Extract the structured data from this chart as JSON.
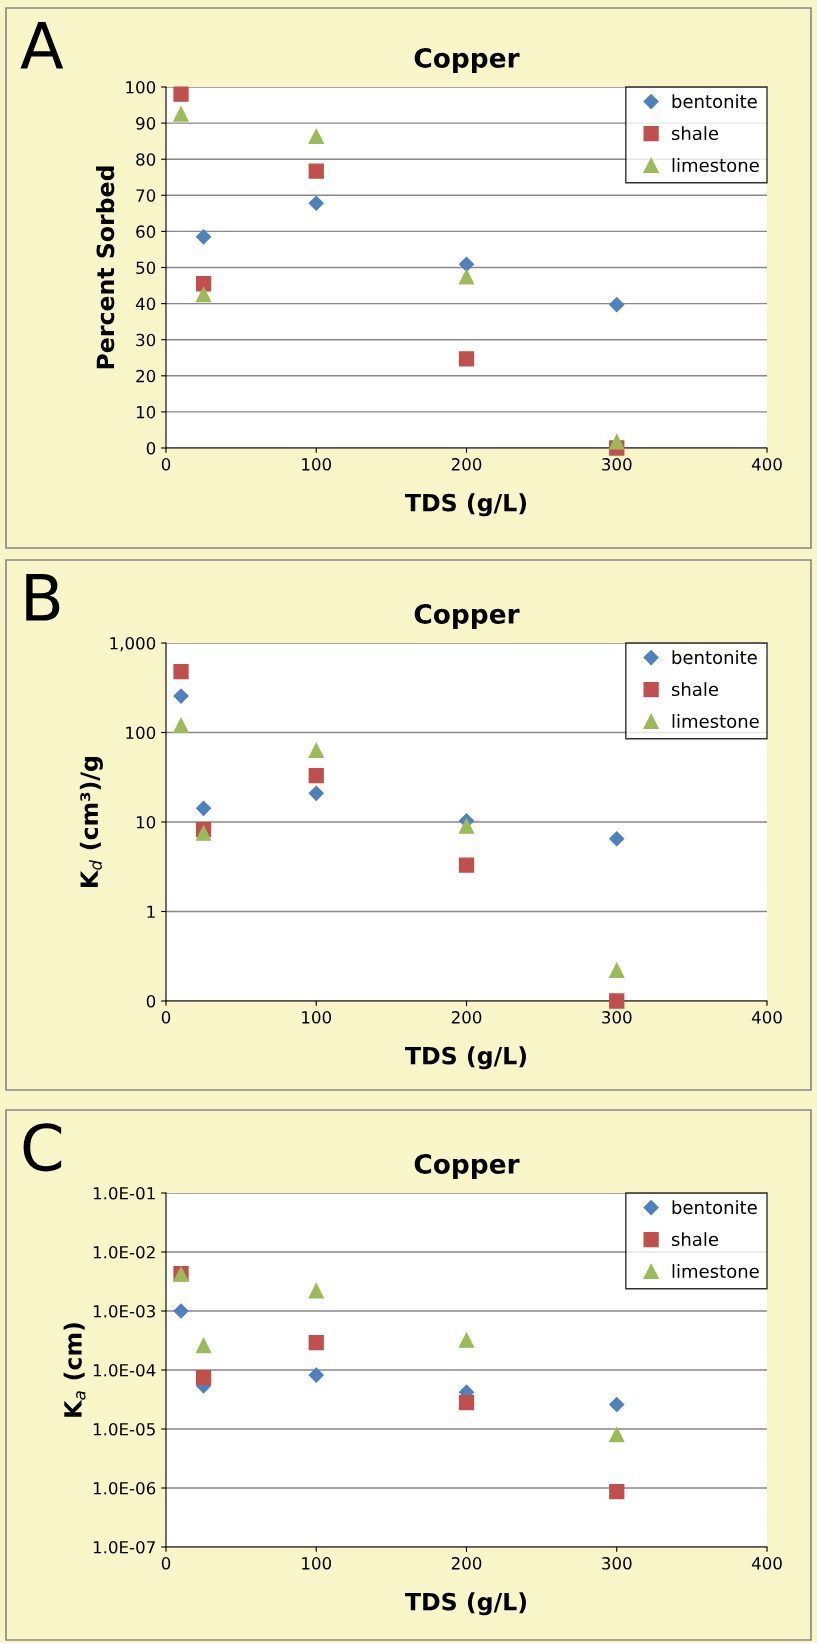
{
  "chart_data": [
    {
      "type": "scatter",
      "title": "Copper",
      "xlabel": "TDS (g/L)",
      "ylabel": "Percent Sorbed",
      "annotations": [
        "A"
      ],
      "x": [
        10,
        25,
        100,
        200,
        300
      ],
      "xlim": [
        0,
        400
      ],
      "xticks": [
        0,
        100,
        200,
        300,
        400
      ],
      "ylim": [
        0,
        100
      ],
      "yticks": [
        0,
        10,
        20,
        30,
        40,
        50,
        60,
        70,
        80,
        90,
        100
      ],
      "grid": "y",
      "legend": "top right",
      "series": [
        {
          "name": "bentonite",
          "color": "#4f81bd",
          "marker": "diamond",
          "values": [
            null,
            58.5,
            67.8,
            50.9,
            39.7
          ]
        },
        {
          "name": "shale",
          "color": "#c0504d",
          "marker": "square",
          "values": [
            98,
            45.5,
            76.7,
            24.7,
            0
          ]
        },
        {
          "name": "limestone",
          "color": "#9bbb59",
          "marker": "triangle",
          "values": [
            92.5,
            42.5,
            86.3,
            47.4,
            1.7
          ]
        }
      ]
    },
    {
      "type": "scatter",
      "title": "Copper",
      "xlabel": "TDS (g/L)",
      "ylabel": "K$_{d}$ (cm³)/g",
      "annotations": [
        "B"
      ],
      "log": "y",
      "x": [
        10,
        25,
        100,
        200,
        300
      ],
      "xlim": [
        0,
        400
      ],
      "xticks": [
        0,
        100,
        200,
        300,
        400
      ],
      "ylim": [
        0.1,
        1000
      ],
      "yticks": [
        {
          "value": 0.1,
          "label": "0"
        },
        1,
        10,
        100,
        {
          "value": 1000,
          "label": "1,000"
        }
      ],
      "grid": "y",
      "legend": "top right",
      "series": [
        {
          "name": "bentonite",
          "color": "#4f81bd",
          "marker": "diamond",
          "values": [
            255,
            14.2,
            20.9,
            10.3,
            6.5
          ]
        },
        {
          "name": "shale",
          "color": "#c0504d",
          "marker": "square",
          "values": [
            480,
            8.2,
            33,
            3.3,
            0.1
          ]
        },
        {
          "name": "limestone",
          "color": "#9bbb59",
          "marker": "triangle",
          "values": [
            120,
            7.5,
            63,
            9.0,
            0.22
          ]
        }
      ]
    },
    {
      "type": "scatter",
      "title": "Copper",
      "xlabel": "TDS (g/L)",
      "ylabel": "K$_{a}$ (cm)",
      "annotations": [
        "C"
      ],
      "log": "y",
      "x": [
        10,
        25,
        100,
        200,
        300
      ],
      "xlim": [
        0,
        400
      ],
      "xticks": [
        0,
        100,
        200,
        300,
        400
      ],
      "ylim": [
        1e-07,
        0.1
      ],
      "yticks": [
        {
          "value": 1e-07,
          "label": "1.0E-07"
        },
        {
          "value": 1e-06,
          "label": "1.0E-06"
        },
        {
          "value": 1e-05,
          "label": "1.0E-05"
        },
        {
          "value": 0.0001,
          "label": "1.0E-04"
        },
        {
          "value": 0.001,
          "label": "1.0E-03"
        },
        {
          "value": 0.01,
          "label": "1.0E-02"
        },
        {
          "value": 0.1,
          "label": "1.0E-01"
        }
      ],
      "grid": "y",
      "legend": "top right",
      "series": [
        {
          "name": "bentonite",
          "color": "#4f81bd",
          "marker": "diamond",
          "values": [
            0.001,
            5.4e-05,
            8.2e-05,
            4.2e-05,
            2.6e-05
          ]
        },
        {
          "name": "shale",
          "color": "#c0504d",
          "marker": "square",
          "values": [
            0.0043,
            7.4e-05,
            0.00029,
            2.8e-05,
            8.7e-07
          ]
        },
        {
          "name": "limestone",
          "color": "#9bbb59",
          "marker": "triangle",
          "values": [
            0.0042,
            0.00026,
            0.0022,
            0.00032,
            8e-06
          ]
        }
      ]
    }
  ]
}
